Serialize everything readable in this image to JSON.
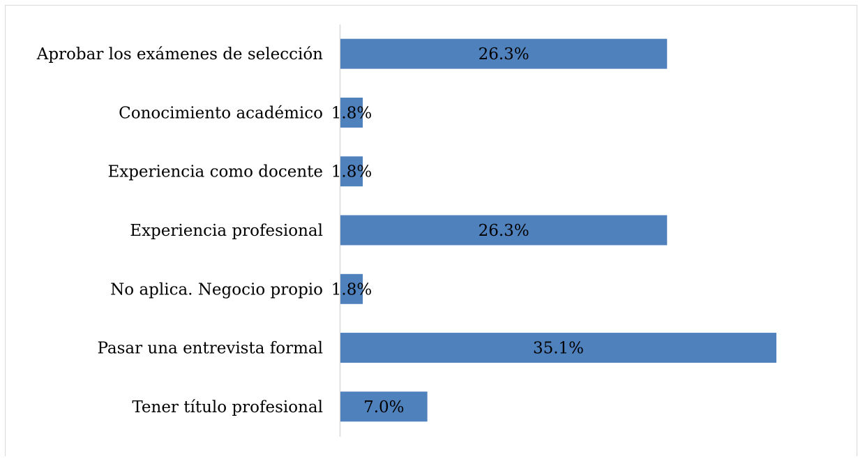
{
  "chart_data": {
    "type": "bar",
    "orientation": "horizontal",
    "categories": [
      "Aprobar los exámenes de selección",
      "Conocimiento académico",
      "Experiencia como docente",
      "Experiencia profesional",
      "No aplica. Negocio propio",
      "Pasar una entrevista formal",
      "Tener título profesional"
    ],
    "values": [
      26.3,
      1.8,
      1.8,
      26.3,
      1.8,
      35.1,
      7.0
    ],
    "value_labels": [
      "26.3%",
      "1.8%",
      "1.8%",
      "26.3%",
      "1.8%",
      "35.1%",
      "7.0%"
    ],
    "color": "#4f81bd"
  }
}
